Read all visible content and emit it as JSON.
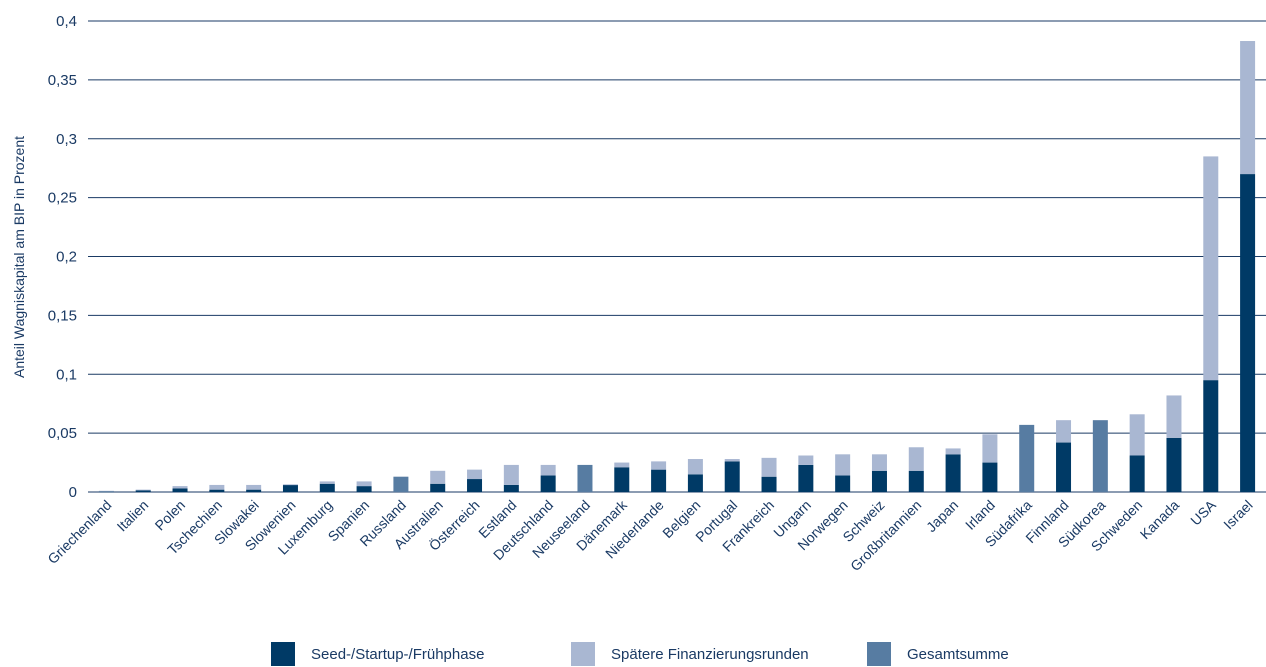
{
  "chart_data": {
    "type": "bar",
    "stacked": true,
    "ylabel": "Anteil Wagniskapital am BIP in Prozent",
    "ylim": [
      0,
      0.4
    ],
    "yticks": [
      "0",
      "0,05",
      "0,1",
      "0,15",
      "0,2",
      "0,25",
      "0,3",
      "0,35",
      "0,4"
    ],
    "ytick_values": [
      0,
      0.05,
      0.1,
      0.15,
      0.2,
      0.25,
      0.3,
      0.35,
      0.4
    ],
    "grid": true,
    "legend_position": "bottom",
    "categories": [
      "Griechenland",
      "Italien",
      "Polen",
      "Tschechien",
      "Slowakei",
      "Slowenien",
      "Luxemburg",
      "Spanien",
      "Russland",
      "Australien",
      "Österreich",
      "Estland",
      "Deutschland",
      "Neuseeland",
      "Dänemark",
      "Niederlande",
      "Belgien",
      "Portugal",
      "Frankreich",
      "Ungarn",
      "Norwegen",
      "Schweiz",
      "Großbritannien",
      "Japan",
      "Irland",
      "Südafrika",
      "Finnland",
      "Südkorea",
      "Schweden",
      "Kanada",
      "USA",
      "Israel"
    ],
    "series": [
      {
        "name": "Seed-/Startup-/Frühphase",
        "color": "#003a66",
        "values": [
          0.0005,
          0.0015,
          0.003,
          0.002,
          0.002,
          0.006,
          0.007,
          0.005,
          0,
          0.007,
          0.011,
          0.006,
          0.014,
          0,
          0.021,
          0.019,
          0.015,
          0.026,
          0.013,
          0.023,
          0.014,
          0.018,
          0.018,
          0.032,
          0.025,
          0,
          0.042,
          0,
          0.031,
          0.046,
          0.095,
          0.27
        ]
      },
      {
        "name": "Spätere Finanzierungsrunden",
        "color": "#a9b7d2",
        "values": [
          0.0005,
          0.0005,
          0.002,
          0.004,
          0.004,
          0.0005,
          0.002,
          0.004,
          0,
          0.011,
          0.008,
          0.017,
          0.009,
          0,
          0.004,
          0.007,
          0.013,
          0.002,
          0.016,
          0.008,
          0.018,
          0.014,
          0.02,
          0.005,
          0.024,
          0,
          0.019,
          0,
          0.035,
          0.036,
          0.19,
          0.113
        ]
      },
      {
        "name": "Gesamtsumme",
        "color": "#577ca2",
        "values": [
          0,
          0,
          0,
          0,
          0,
          0,
          0,
          0,
          0.013,
          0,
          0,
          0,
          0,
          0.023,
          0,
          0,
          0,
          0,
          0,
          0,
          0,
          0,
          0,
          0,
          0,
          0.057,
          0,
          0.061,
          0,
          0,
          0,
          0
        ]
      }
    ]
  }
}
